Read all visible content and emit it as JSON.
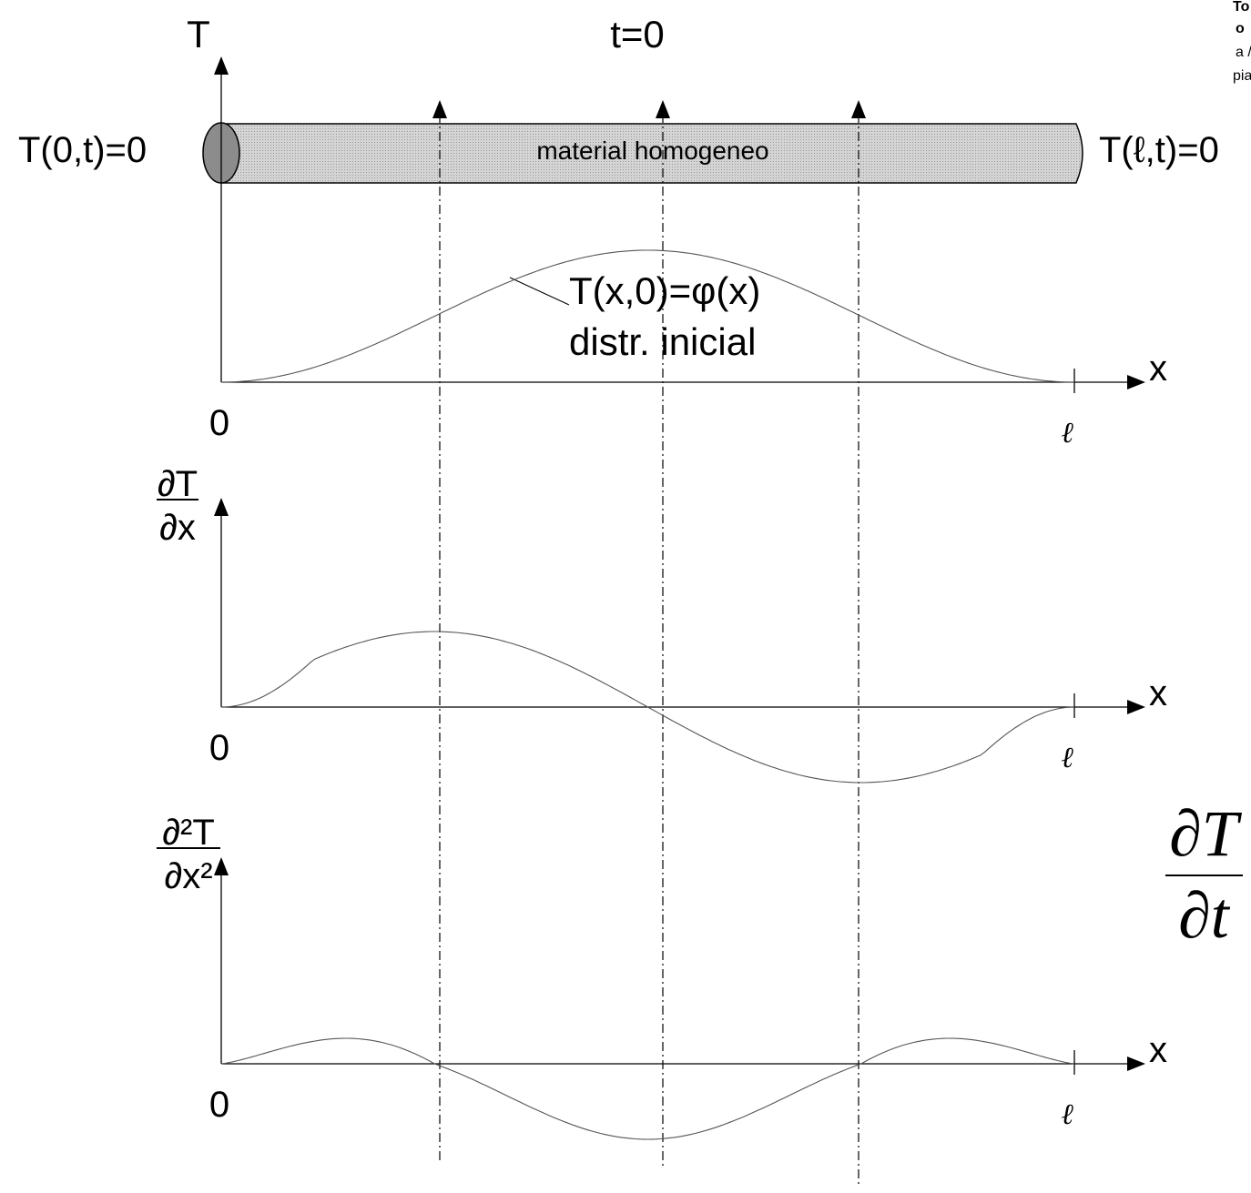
{
  "top": {
    "axis_label": "T",
    "time_label": "t=0",
    "left_bc": "T(0,t)=0",
    "right_bc": "T(ℓ,t)=0",
    "rod_label": "material homogeneo",
    "curve_label": "T(x,0)=φ(x)",
    "curve_note": "distr. inicial"
  },
  "panels": [
    {
      "x_label": "x",
      "origin": "0",
      "end": "ℓ"
    },
    {
      "y_numerator": "∂T",
      "y_denominator": "∂x",
      "x_label": "x",
      "origin": "0",
      "end": "ℓ"
    },
    {
      "y_numerator": "∂²T",
      "y_denominator": "∂x²",
      "x_label": "x",
      "origin": "0",
      "end": "ℓ"
    }
  ],
  "equation": {
    "numerator": "∂T",
    "denominator": "∂t"
  },
  "cropped_text": [
    "To",
    "o",
    "a /",
    "pia"
  ]
}
